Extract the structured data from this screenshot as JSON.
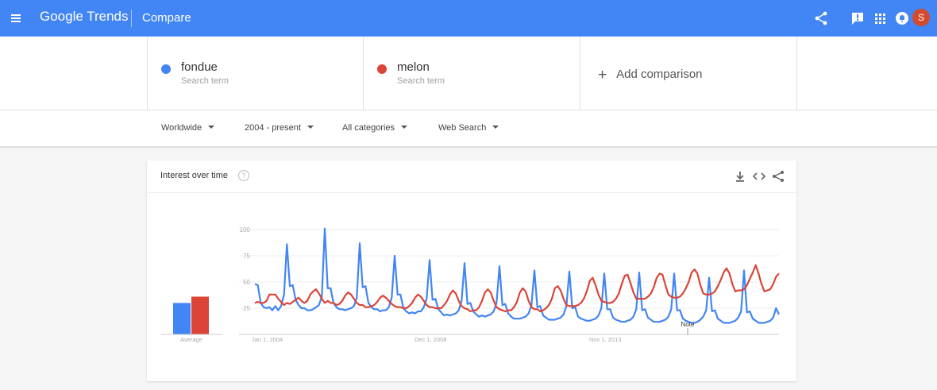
{
  "header": {
    "logo": "Google Trends",
    "title": "Compare",
    "avatar_letter": "S",
    "icons": [
      "menu-icon",
      "share-icon",
      "feedback-icon",
      "apps-icon",
      "notifications-icon"
    ]
  },
  "terms": [
    {
      "name": "fondue",
      "subtitle": "Search term",
      "color": "#4285f4"
    },
    {
      "name": "melon",
      "subtitle": "Search term",
      "color": "#db4437"
    }
  ],
  "add_comparison": {
    "label": "Add comparison"
  },
  "filters": [
    {
      "label": "Worldwide"
    },
    {
      "label": "2004 - present"
    },
    {
      "label": "All categories"
    },
    {
      "label": "Web Search"
    }
  ],
  "card": {
    "title": "Interest over time",
    "help": "?",
    "actions": [
      "download-icon",
      "embed-icon",
      "share-icon"
    ]
  },
  "chart_data": {
    "type": "line",
    "x_tick_labels": [
      "Jan 1, 2004",
      "Dec 1, 2008",
      "Nov 1, 2013"
    ],
    "y_ticks": [
      25,
      50,
      75,
      100
    ],
    "ylim": [
      0,
      100
    ],
    "grid": true,
    "note_label": "Note",
    "average_label": "Average",
    "averages": [
      {
        "term": "fondue",
        "value": 30
      },
      {
        "term": "melon",
        "value": 36
      }
    ],
    "series": [
      {
        "name": "fondue",
        "color": "#4285f4",
        "values": [
          48,
          47,
          30,
          26,
          25,
          26,
          23,
          27,
          23,
          27,
          38,
          86,
          46,
          47,
          33,
          28,
          25,
          25,
          23,
          23,
          24,
          26,
          28,
          36,
          101,
          44,
          44,
          30,
          26,
          24,
          24,
          23,
          24,
          25,
          27,
          35,
          87,
          45,
          46,
          30,
          26,
          24,
          24,
          22,
          23,
          23,
          26,
          35,
          75,
          38,
          38,
          25,
          22,
          20,
          21,
          20,
          22,
          22,
          26,
          34,
          71,
          33,
          34,
          24,
          21,
          18,
          19,
          18,
          19,
          20,
          23,
          32,
          68,
          29,
          30,
          22,
          19,
          17,
          18,
          17,
          18,
          19,
          22,
          30,
          65,
          28,
          29,
          20,
          17,
          15,
          15,
          15,
          16,
          17,
          20,
          28,
          61,
          26,
          27,
          18,
          16,
          14,
          14,
          14,
          15,
          16,
          19,
          27,
          60,
          25,
          26,
          17,
          15,
          14,
          13,
          13,
          14,
          15,
          18,
          25,
          58,
          24,
          24,
          16,
          14,
          13,
          12,
          12,
          13,
          14,
          17,
          24,
          59,
          23,
          24,
          16,
          14,
          12,
          12,
          12,
          13,
          14,
          17,
          24,
          58,
          23,
          23,
          15,
          13,
          12,
          11,
          11,
          12,
          14,
          17,
          23,
          54,
          22,
          23,
          15,
          13,
          11,
          11,
          11,
          12,
          13,
          16,
          22,
          61,
          21,
          22,
          15,
          13,
          11,
          11,
          11,
          12,
          13,
          16,
          25,
          19
        ]
      },
      {
        "name": "melon",
        "color": "#db4437",
        "values": [
          30,
          31,
          30,
          30,
          32,
          38,
          38,
          38,
          34,
          31,
          28,
          30,
          29,
          31,
          33,
          35,
          32,
          30,
          32,
          38,
          41,
          43,
          39,
          34,
          30,
          32,
          30,
          30,
          28,
          29,
          32,
          37,
          40,
          38,
          34,
          30,
          28,
          28,
          26,
          26,
          27,
          28,
          31,
          35,
          37,
          35,
          32,
          29,
          27,
          26,
          26,
          25,
          25,
          27,
          30,
          35,
          38,
          36,
          32,
          28,
          26,
          26,
          25,
          25,
          25,
          28,
          32,
          38,
          42,
          39,
          32,
          27,
          25,
          24,
          22,
          23,
          23,
          26,
          32,
          40,
          43,
          40,
          32,
          26,
          24,
          23,
          22,
          23,
          23,
          26,
          31,
          40,
          44,
          41,
          32,
          26,
          24,
          24,
          22,
          23,
          25,
          28,
          34,
          44,
          46,
          42,
          34,
          28,
          27,
          27,
          27,
          28,
          30,
          34,
          41,
          51,
          54,
          47,
          38,
          32,
          31,
          30,
          30,
          31,
          34,
          39,
          48,
          56,
          57,
          49,
          40,
          34,
          34,
          34,
          34,
          36,
          39,
          45,
          54,
          58,
          57,
          47,
          38,
          36,
          35,
          35,
          36,
          39,
          44,
          50,
          59,
          62,
          58,
          47,
          39,
          38,
          38,
          39,
          41,
          46,
          52,
          59,
          63,
          58,
          48,
          41,
          42,
          42,
          43,
          47,
          53,
          59,
          66,
          58,
          48,
          41,
          42,
          43,
          48,
          55,
          58
        ]
      }
    ]
  }
}
